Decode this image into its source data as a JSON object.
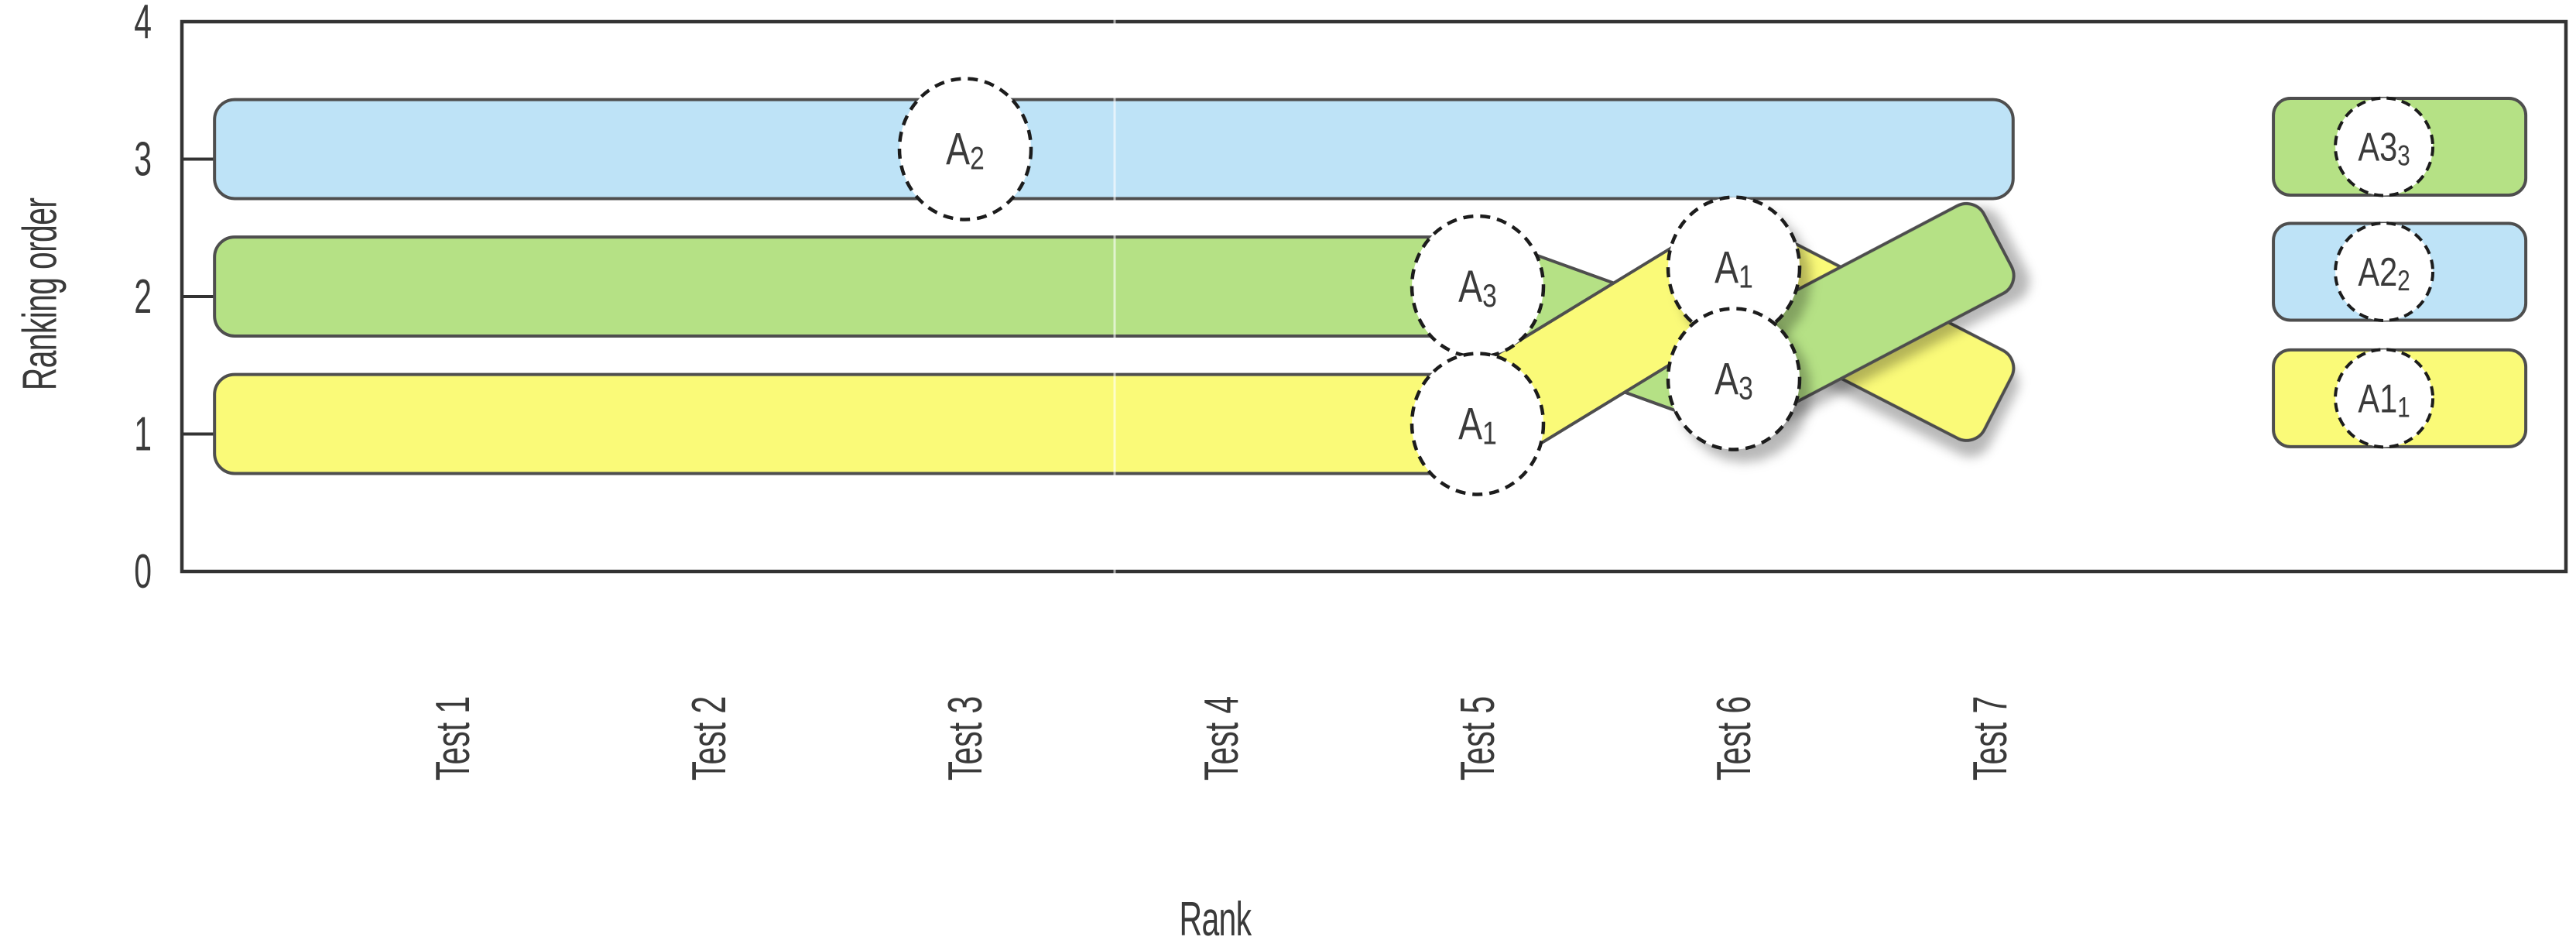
{
  "figure": {
    "background": "#ffffff",
    "frame_color": "#333333",
    "text_color": "#3a3a3a",
    "band_stroke": "#4e4e4e",
    "circle_stroke": "#1c1c1c",
    "shadow_color": "#000000"
  },
  "chart_data": {
    "type": "bump",
    "title": "",
    "xlabel": "Rank",
    "ylabel": "Ranking order",
    "x_categories": [
      "Test 1",
      "Test 2",
      "Test 3",
      "Test 4",
      "Test 5",
      "Test 6",
      "Test 7"
    ],
    "y_ticks": [
      0,
      1,
      2,
      3,
      4
    ],
    "ylim": [
      0,
      4
    ],
    "grid": false,
    "legend_position": "right-final-ranking-panel",
    "band_height_ranks": 0.72,
    "series": [
      {
        "id": "A2",
        "label": "A2",
        "label_base": "A",
        "label_sub": "2",
        "fill": "#BEE3F7",
        "rank_by_test": [
          3,
          3,
          3,
          3,
          3,
          3,
          3
        ],
        "final_rank": 2,
        "horizontal": {
          "center_rank": 3.073,
          "x_start_units": 0.07,
          "x_end_units": 7.09
        },
        "diagonals": [],
        "markers": [
          {
            "x_units": 3,
            "center_rank": 3.073,
            "shadow": false,
            "z": 1
          }
        ]
      },
      {
        "id": "A3",
        "label": "A3",
        "label_base": "A",
        "label_sub": "3",
        "fill": "#B5E185",
        "rank_by_test": [
          2,
          2,
          2,
          2,
          2,
          1.4,
          2.3
        ],
        "final_rank": 3,
        "horizontal": {
          "center_rank": 2.073,
          "x_start_units": 0.07,
          "x_end_units": 5.18
        },
        "diagonals": [
          {
            "x1_units": 5,
            "r1": 2.073,
            "x2_units": 6,
            "r2": 1.4,
            "shadow": false,
            "layer": 1
          },
          {
            "x1_units": 6,
            "r1": 1.4,
            "x2_units": 6.95,
            "r2": 2.33,
            "shadow": true,
            "layer": 4
          }
        ],
        "markers": [
          {
            "x_units": 5,
            "center_rank": 2.073,
            "shadow": false,
            "z": 2
          },
          {
            "x_units": 6,
            "center_rank": 1.4,
            "shadow": true,
            "z": 5
          }
        ]
      },
      {
        "id": "A1",
        "label": "A1",
        "label_base": "A",
        "label_sub": "1",
        "fill": "#FAFA78",
        "rank_by_test": [
          1,
          1,
          1,
          1,
          1,
          2.2,
          1.3
        ],
        "final_rank": 1,
        "horizontal": {
          "center_rank": 1.073,
          "x_start_units": 0.07,
          "x_end_units": 5.15
        },
        "diagonals": [
          {
            "x1_units": 5,
            "r1": 1.073,
            "x2_units": 6,
            "r2": 2.21,
            "shadow": false,
            "layer": 2
          },
          {
            "x1_units": 6,
            "r1": 2.21,
            "x2_units": 6.95,
            "r2": 1.3,
            "shadow": true,
            "layer": 3
          }
        ],
        "markers": [
          {
            "x_units": 5,
            "center_rank": 1.073,
            "shadow": false,
            "z": 3
          },
          {
            "x_units": 6,
            "center_rank": 2.21,
            "shadow": true,
            "z": 4
          }
        ]
      }
    ],
    "final_panel": {
      "x_start_units": 8.106,
      "x_end_units": 9.091,
      "circle_x_units": 8.538,
      "boxes": [
        {
          "id": "A3",
          "label": "A3",
          "label_base": "A",
          "label_sub": "3",
          "fill": "#B5E185",
          "center_rank": 3.09
        },
        {
          "id": "A2",
          "label": "A2",
          "label_base": "A",
          "label_sub": "2",
          "fill": "#BEE3F7",
          "center_rank": 2.18
        },
        {
          "id": "A1",
          "label": "A1",
          "label_base": "A",
          "label_sub": "1",
          "fill": "#FAFA78",
          "center_rank": 1.26
        }
      ]
    }
  }
}
